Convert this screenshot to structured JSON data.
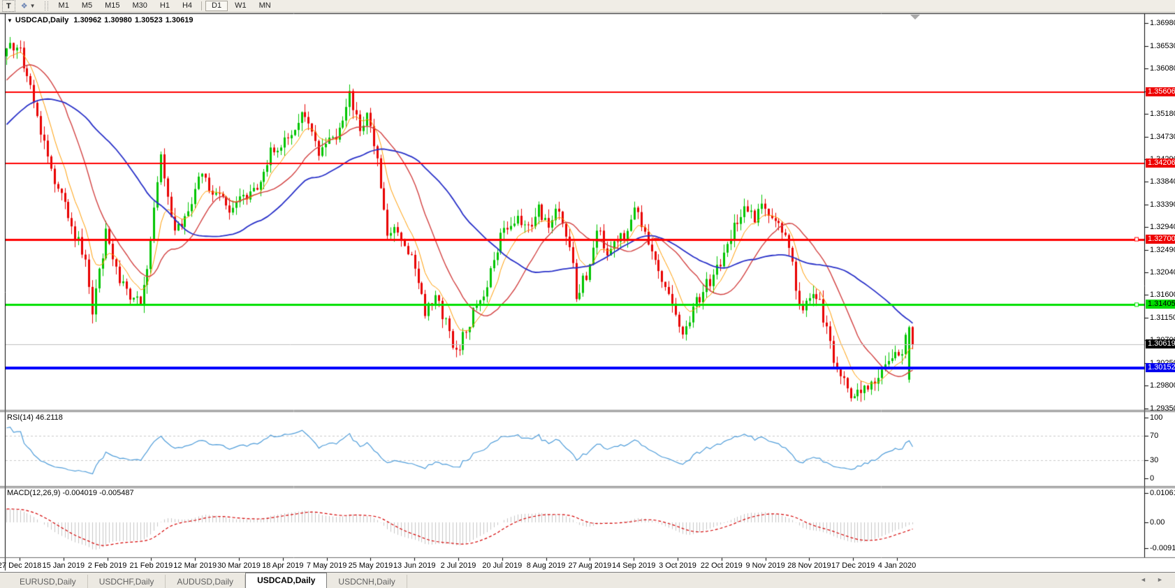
{
  "toolbar": {
    "text_tool": "T",
    "arrange_glyph": "❖",
    "caret": "▼",
    "timeframes": [
      "M1",
      "M5",
      "M15",
      "M30",
      "H1",
      "H4",
      "D1",
      "W1",
      "MN"
    ],
    "active_timeframe": "D1"
  },
  "chart": {
    "title_caret": "▼",
    "symbol": "USDCAD,Daily",
    "open": "1.30962",
    "high": "1.30980",
    "low": "1.30523",
    "close": "1.30619"
  },
  "price_axis": {
    "ticks": [
      "1.36980",
      "1.36530",
      "1.36080",
      "1.35630",
      "1.35180",
      "1.34730",
      "1.34290",
      "1.33840",
      "1.33390",
      "1.32940",
      "1.32490",
      "1.32040",
      "1.31600",
      "1.31150",
      "1.30700",
      "1.30250",
      "1.29800",
      "1.29350"
    ]
  },
  "levels": [
    {
      "label": "1.35606",
      "price": 1.35606,
      "line_color": "#FF0000",
      "label_bg": "#EE0000",
      "label_fg": "#FFFFFF",
      "thickness": 2,
      "handle": false
    },
    {
      "label": "1.34206",
      "price": 1.34206,
      "line_color": "#FF0000",
      "label_bg": "#EE0000",
      "label_fg": "#FFFFFF",
      "thickness": 2,
      "handle": false
    },
    {
      "label": "1.32700",
      "price": 1.327,
      "line_color": "#FF0000",
      "label_bg": "#EE0000",
      "label_fg": "#FFFFFF",
      "thickness": 3,
      "handle": true
    },
    {
      "label": "1.31405",
      "price": 1.31405,
      "line_color": "#00E000",
      "label_bg": "#00DD00",
      "label_fg": "#000000",
      "thickness": 3,
      "handle": true
    },
    {
      "label": "1.30619",
      "price": 1.30619,
      "line_color": "#BEBEBE",
      "label_bg": "#000000",
      "label_fg": "#FFFFFF",
      "thickness": 1,
      "handle": false
    },
    {
      "label": "1.30152",
      "price": 1.30152,
      "line_color": "#0000FF",
      "label_bg": "#0000EE",
      "label_fg": "#FFFFFF",
      "thickness": 4,
      "handle": false
    }
  ],
  "rsi": {
    "label": "RSI(14) 46.2118",
    "value": 46.2118,
    "scale": [
      "100",
      "70",
      "30",
      "0"
    ],
    "scale_values": [
      100,
      70,
      30,
      0
    ],
    "guides": [
      70,
      30
    ],
    "line_color": "#4E9CD9"
  },
  "macd": {
    "label": "MACD(12,26,9) -0.004019 -0.005487",
    "value": -0.004019,
    "signal": -0.005487,
    "scale": [
      "0.010615",
      "0.00",
      "-0.00918"
    ],
    "scale_values": [
      0.010615,
      0,
      -0.00918
    ],
    "histogram_color": "#C6C6C6",
    "signal_color": "#D40000"
  },
  "dates": [
    "27 Dec 2018",
    "15 Jan 2019",
    "2 Feb 2019",
    "21 Feb 2019",
    "12 Mar 2019",
    "30 Mar 2019",
    "18 Apr 2019",
    "7 May 2019",
    "25 May 2019",
    "13 Jun 2019",
    "2 Jul 2019",
    "20 Jul 2019",
    "8 Aug 2019",
    "27 Aug 2019",
    "14 Sep 2019",
    "3 Oct 2019",
    "22 Oct 2019",
    "9 Nov 2019",
    "28 Nov 2019",
    "17 Dec 2019",
    "4 Jan 2020"
  ],
  "tabs": [
    "EURUSD,Daily",
    "USDCHF,Daily",
    "AUDUSD,Daily",
    "USDCAD,Daily",
    "USDCNH,Daily"
  ],
  "active_tab": "USDCAD,Daily",
  "tab_scroll_left": "◄",
  "tab_scroll_right": "►",
  "chart_data": {
    "type": "candlestick",
    "symbol": "USDCAD",
    "timeframe": "Daily",
    "visible_bars": 265,
    "y_axis_range": [
      1.292,
      1.371
    ],
    "x_axis_dates": [
      "27 Dec 2018",
      "15 Jan 2019",
      "2 Feb 2019",
      "21 Feb 2019",
      "12 Mar 2019",
      "30 Mar 2019",
      "18 Apr 2019",
      "7 May 2019",
      "25 May 2019",
      "13 Jun 2019",
      "2 Jul 2019",
      "20 Jul 2019",
      "8 Aug 2019",
      "27 Aug 2019",
      "14 Sep 2019",
      "3 Oct 2019",
      "22 Oct 2019",
      "9 Nov 2019",
      "28 Nov 2019",
      "17 Dec 2019",
      "4 Jan 2020"
    ],
    "last_bar": {
      "open": 1.30962,
      "high": 1.3098,
      "low": 1.30523,
      "close": 1.30619
    },
    "up_color": "#00C400",
    "down_color": "#E80000",
    "moving_averages": [
      {
        "type": "ema",
        "period": 8,
        "color": "#FF9C00"
      },
      {
        "type": "sma",
        "period": 20,
        "color": "#D24040"
      },
      {
        "type": "sma",
        "period": 45,
        "color": "#2830C8"
      }
    ],
    "horizontal_lines": [
      1.35606,
      1.34206,
      1.327,
      1.31405,
      1.30152
    ],
    "indicators": {
      "rsi_period": 14,
      "rsi_last": 46.2118,
      "macd_params": [
        12,
        26,
        9
      ],
      "macd_last": -0.004019,
      "macd_signal_last": -0.005487
    },
    "price_path": [
      [
        0,
        1.365
      ],
      [
        3,
        1.3656
      ],
      [
        6,
        1.36
      ],
      [
        10,
        1.348
      ],
      [
        14,
        1.339
      ],
      [
        19,
        1.33
      ],
      [
        23,
        1.323
      ],
      [
        25,
        1.312
      ],
      [
        27,
        1.32
      ],
      [
        29,
        1.329
      ],
      [
        32,
        1.321
      ],
      [
        36,
        1.315
      ],
      [
        39,
        1.3148
      ],
      [
        42,
        1.326
      ],
      [
        45,
        1.344
      ],
      [
        49,
        1.328
      ],
      [
        53,
        1.333
      ],
      [
        57,
        1.34
      ],
      [
        60,
        1.336
      ],
      [
        63,
        1.3345
      ],
      [
        66,
        1.333
      ],
      [
        69,
        1.335
      ],
      [
        73,
        1.3365
      ],
      [
        77,
        1.345
      ],
      [
        82,
        1.347
      ],
      [
        87,
        1.352
      ],
      [
        91,
        1.3445
      ],
      [
        96,
        1.3475
      ],
      [
        100,
        1.356
      ],
      [
        103,
        1.348
      ],
      [
        105,
        1.353
      ],
      [
        108,
        1.342
      ],
      [
        111,
        1.327
      ],
      [
        114,
        1.329
      ],
      [
        117,
        1.325
      ],
      [
        120,
        1.318
      ],
      [
        122,
        1.313
      ],
      [
        125,
        1.315
      ],
      [
        128,
        1.311
      ],
      [
        131,
        1.3045
      ],
      [
        134,
        1.309
      ],
      [
        137,
        1.314
      ],
      [
        140,
        1.318
      ],
      [
        144,
        1.328
      ],
      [
        148,
        1.331
      ],
      [
        152,
        1.329
      ],
      [
        155,
        1.333
      ],
      [
        158,
        1.33
      ],
      [
        161,
        1.333
      ],
      [
        164,
        1.326
      ],
      [
        166,
        1.316
      ],
      [
        169,
        1.32
      ],
      [
        172,
        1.329
      ],
      [
        175,
        1.325
      ],
      [
        178,
        1.327
      ],
      [
        181,
        1.329
      ],
      [
        183,
        1.334
      ],
      [
        186,
        1.328
      ],
      [
        189,
        1.323
      ],
      [
        192,
        1.317
      ],
      [
        195,
        1.311
      ],
      [
        197,
        1.309
      ],
      [
        200,
        1.313
      ],
      [
        203,
        1.317
      ],
      [
        206,
        1.32
      ],
      [
        209,
        1.324
      ],
      [
        212,
        1.329
      ],
      [
        215,
        1.333
      ],
      [
        218,
        1.331
      ],
      [
        221,
        1.334
      ],
      [
        223,
        1.331
      ],
      [
        226,
        1.328
      ],
      [
        228,
        1.326
      ],
      [
        231,
        1.313
      ],
      [
        234,
        1.316
      ],
      [
        237,
        1.314
      ],
      [
        240,
        1.306
      ],
      [
        243,
        1.2995
      ],
      [
        246,
        1.296
      ],
      [
        249,
        1.2975
      ],
      [
        252,
        1.2985
      ],
      [
        255,
        1.3
      ],
      [
        258,
        1.303
      ],
      [
        261,
        1.305
      ],
      [
        263,
        1.3105
      ],
      [
        264,
        1.3062
      ]
    ]
  }
}
